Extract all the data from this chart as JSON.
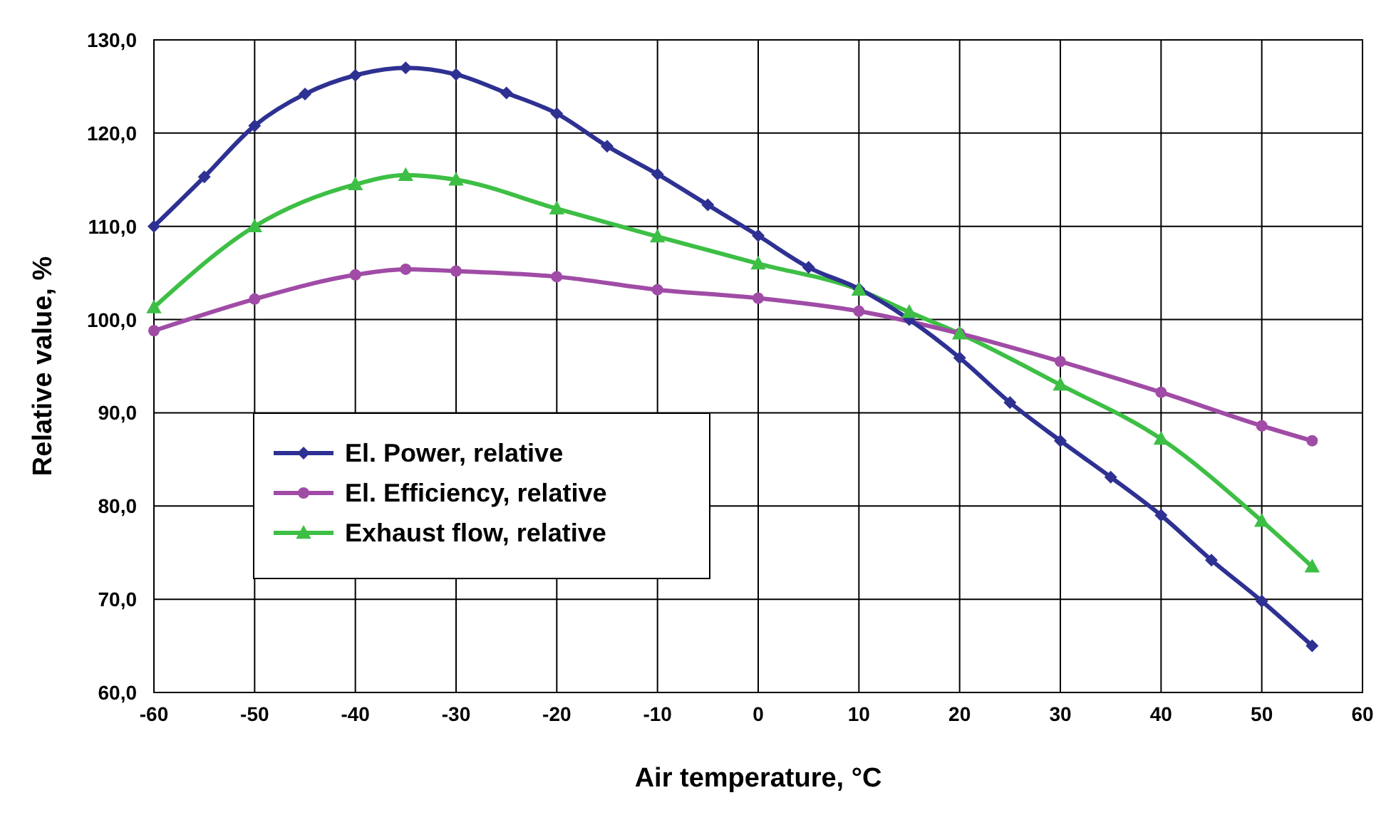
{
  "chart_data": {
    "type": "line",
    "xlabel": "Air temperature, °C",
    "ylabel": "Relative value, %",
    "xlim": [
      -60,
      60
    ],
    "xticks": [
      -60,
      -50,
      -40,
      -30,
      -20,
      -10,
      0,
      10,
      20,
      30,
      40,
      50,
      60
    ],
    "ylim": [
      60,
      130
    ],
    "yticks": [
      {
        "value": 60,
        "label": "60,0"
      },
      {
        "value": 70,
        "label": "70,0"
      },
      {
        "value": 80,
        "label": "80,0"
      },
      {
        "value": 90,
        "label": "90,0"
      },
      {
        "value": 100,
        "label": "100,0"
      },
      {
        "value": 110,
        "label": "110,0"
      },
      {
        "value": 120,
        "label": "120,0"
      },
      {
        "value": 130,
        "label": "130,0"
      }
    ],
    "grid": true,
    "legend": "left",
    "line_style": "solid",
    "series": [
      {
        "name": "El. Power, relative",
        "color": "#2e3192",
        "marker": "diamond",
        "x": [
          -60,
          -55,
          -50,
          -45,
          -40,
          -35,
          -30,
          -25,
          -20,
          -15,
          -10,
          -5,
          0,
          5,
          10,
          15,
          20,
          25,
          30,
          35,
          40,
          45,
          50,
          55
        ],
        "values": [
          110,
          115.3,
          120.8,
          124.2,
          126.2,
          127,
          126.3,
          124.3,
          122.1,
          118.6,
          115.6,
          112.3,
          109,
          105.6,
          103.3,
          100,
          95.9,
          91.1,
          87,
          83.1,
          79,
          74.2,
          69.8,
          65
        ]
      },
      {
        "name": "El. Efficiency, relative",
        "color": "#a04ca6",
        "marker": "circle",
        "x": [
          -60,
          -50,
          -40,
          -35,
          -30,
          -20,
          -10,
          0,
          10,
          20,
          30,
          40,
          50,
          55
        ],
        "values": [
          98.8,
          102.2,
          104.8,
          105.4,
          105.2,
          104.6,
          103.2,
          102.3,
          100.9,
          98.5,
          95.5,
          92.2,
          88.6,
          87
        ]
      },
      {
        "name": "Exhaust flow, relative",
        "color": "#3dbf45",
        "marker": "triangle",
        "x": [
          -60,
          -50,
          -40,
          -35,
          -30,
          -20,
          -10,
          0,
          10,
          15,
          20,
          30,
          40,
          50,
          55
        ],
        "values": [
          101.3,
          110,
          114.5,
          115.5,
          115,
          111.9,
          108.9,
          106,
          103.2,
          100.8,
          98.5,
          93,
          87.2,
          78.4,
          73.5
        ]
      }
    ]
  }
}
